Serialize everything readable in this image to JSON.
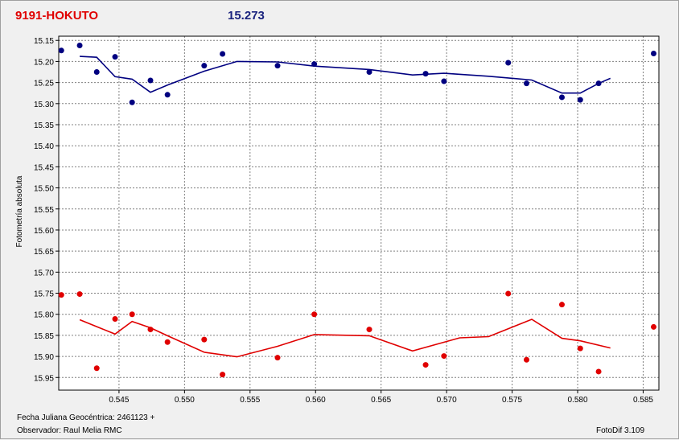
{
  "header": {
    "title": "9191-HOKUTO",
    "magnitude": "15.273"
  },
  "footer": {
    "date_label": "Fecha Juliana Geocéntrica: 2461123 +",
    "observer": "Observador: Raul Melia RMC",
    "software": "FotoDif 3.109"
  },
  "colors": {
    "blue_series": "#000080",
    "red_series": "#e00000",
    "grid": "#808080"
  },
  "chart_data": {
    "type": "scatter",
    "ylabel": "Fotometría absoluta",
    "xlabel": "",
    "xlim": [
      0.5404,
      0.5862
    ],
    "ylim": [
      15.14,
      15.98
    ],
    "y_inverted": true,
    "grid": true,
    "x_ticks": [
      "0.545",
      "0.550",
      "0.555",
      "0.560",
      "0.565",
      "0.570",
      "0.575",
      "0.580",
      "0.585"
    ],
    "x_tick_values": [
      0.545,
      0.55,
      0.555,
      0.56,
      0.565,
      0.57,
      0.575,
      0.58,
      0.585
    ],
    "y_ticks": [
      "15.15",
      "15.20",
      "15.25",
      "15.30",
      "15.35",
      "15.40",
      "15.45",
      "15.50",
      "15.55",
      "15.60",
      "15.65",
      "15.70",
      "15.75",
      "15.80",
      "15.85",
      "15.90",
      "15.95"
    ],
    "y_tick_values": [
      15.15,
      15.2,
      15.25,
      15.3,
      15.35,
      15.4,
      15.45,
      15.5,
      15.55,
      15.6,
      15.65,
      15.7,
      15.75,
      15.8,
      15.85,
      15.9,
      15.95
    ],
    "series": [
      {
        "color": "#000080",
        "points": [
          [
            0.5406,
            15.174
          ],
          [
            0.542,
            15.162
          ],
          [
            0.5433,
            15.225
          ],
          [
            0.5447,
            15.189
          ],
          [
            0.546,
            15.297
          ],
          [
            0.5474,
            15.245
          ],
          [
            0.5487,
            15.279
          ],
          [
            0.5515,
            15.21
          ],
          [
            0.5529,
            15.182
          ],
          [
            0.5571,
            15.21
          ],
          [
            0.5599,
            15.206
          ],
          [
            0.5641,
            15.225
          ],
          [
            0.5684,
            15.229
          ],
          [
            0.5698,
            15.247
          ],
          [
            0.5747,
            15.203
          ],
          [
            0.5761,
            15.252
          ],
          [
            0.5788,
            15.285
          ],
          [
            0.5802,
            15.291
          ],
          [
            0.5816,
            15.252
          ],
          [
            0.5858,
            15.181
          ]
        ],
        "fit": [
          [
            0.542,
            15.188
          ],
          [
            0.5433,
            15.19
          ],
          [
            0.5447,
            15.236
          ],
          [
            0.546,
            15.242
          ],
          [
            0.5474,
            15.273
          ],
          [
            0.5487,
            15.256
          ],
          [
            0.5515,
            15.223
          ],
          [
            0.554,
            15.2
          ],
          [
            0.5571,
            15.201
          ],
          [
            0.5599,
            15.211
          ],
          [
            0.5641,
            15.219
          ],
          [
            0.5674,
            15.232
          ],
          [
            0.5698,
            15.228
          ],
          [
            0.5732,
            15.235
          ],
          [
            0.5765,
            15.244
          ],
          [
            0.5788,
            15.275
          ],
          [
            0.5802,
            15.275
          ],
          [
            0.5816,
            15.252
          ],
          [
            0.5825,
            15.24
          ]
        ]
      },
      {
        "color": "#e00000",
        "points": [
          [
            0.5406,
            15.754
          ],
          [
            0.542,
            15.752
          ],
          [
            0.5433,
            15.928
          ],
          [
            0.5447,
            15.811
          ],
          [
            0.546,
            15.8
          ],
          [
            0.5474,
            15.836
          ],
          [
            0.5487,
            15.866
          ],
          [
            0.5515,
            15.86
          ],
          [
            0.5529,
            15.943
          ],
          [
            0.5571,
            15.903
          ],
          [
            0.5599,
            15.8
          ],
          [
            0.5641,
            15.836
          ],
          [
            0.5684,
            15.92
          ],
          [
            0.5698,
            15.899
          ],
          [
            0.5747,
            15.751
          ],
          [
            0.5761,
            15.908
          ],
          [
            0.5788,
            15.777
          ],
          [
            0.5802,
            15.881
          ],
          [
            0.5816,
            15.936
          ],
          [
            0.5858,
            15.83
          ]
        ],
        "fit": [
          [
            0.542,
            15.813
          ],
          [
            0.5447,
            15.847
          ],
          [
            0.546,
            15.817
          ],
          [
            0.5474,
            15.832
          ],
          [
            0.5487,
            15.851
          ],
          [
            0.5515,
            15.89
          ],
          [
            0.554,
            15.901
          ],
          [
            0.5571,
            15.876
          ],
          [
            0.5599,
            15.848
          ],
          [
            0.5641,
            15.851
          ],
          [
            0.5674,
            15.887
          ],
          [
            0.571,
            15.856
          ],
          [
            0.5732,
            15.853
          ],
          [
            0.5765,
            15.812
          ],
          [
            0.5788,
            15.857
          ],
          [
            0.5802,
            15.863
          ],
          [
            0.5825,
            15.88
          ]
        ]
      }
    ]
  }
}
